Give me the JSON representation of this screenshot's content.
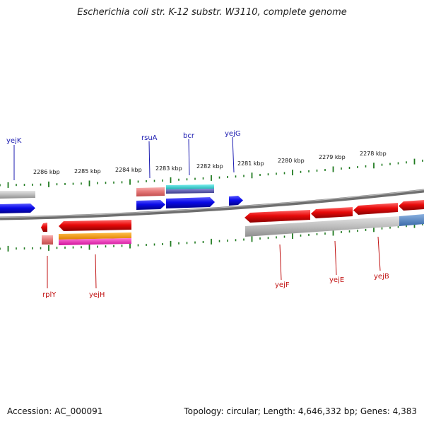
{
  "title": "Escherichia coli str. K-12 substr. W3110, complete genome",
  "footer": {
    "accession": "Accession: AC_000091",
    "summary": "Topology: circular; Length: 4,646,332 bp; Genes: 4,383"
  },
  "colors": {
    "forward_gene": "#0a0ae8",
    "reverse_gene": "#e80a0a",
    "forward_label": "#1a1ab0",
    "reverse_label": "#c01010",
    "tick": "#1f7a1f",
    "backbone": "#808080"
  },
  "scale_labels": [
    "2286 kbp",
    "2285 kbp",
    "2284 kbp",
    "2283 kbp",
    "2282 kbp",
    "2281 kbp",
    "2280 kbp",
    "2279 kbp",
    "2278 kbp"
  ],
  "forward_genes": [
    "yejK",
    "rsuA",
    "bcr",
    "yejG"
  ],
  "reverse_genes": [
    "rplY",
    "yejH",
    "yejF",
    "yejE",
    "yejB"
  ]
}
